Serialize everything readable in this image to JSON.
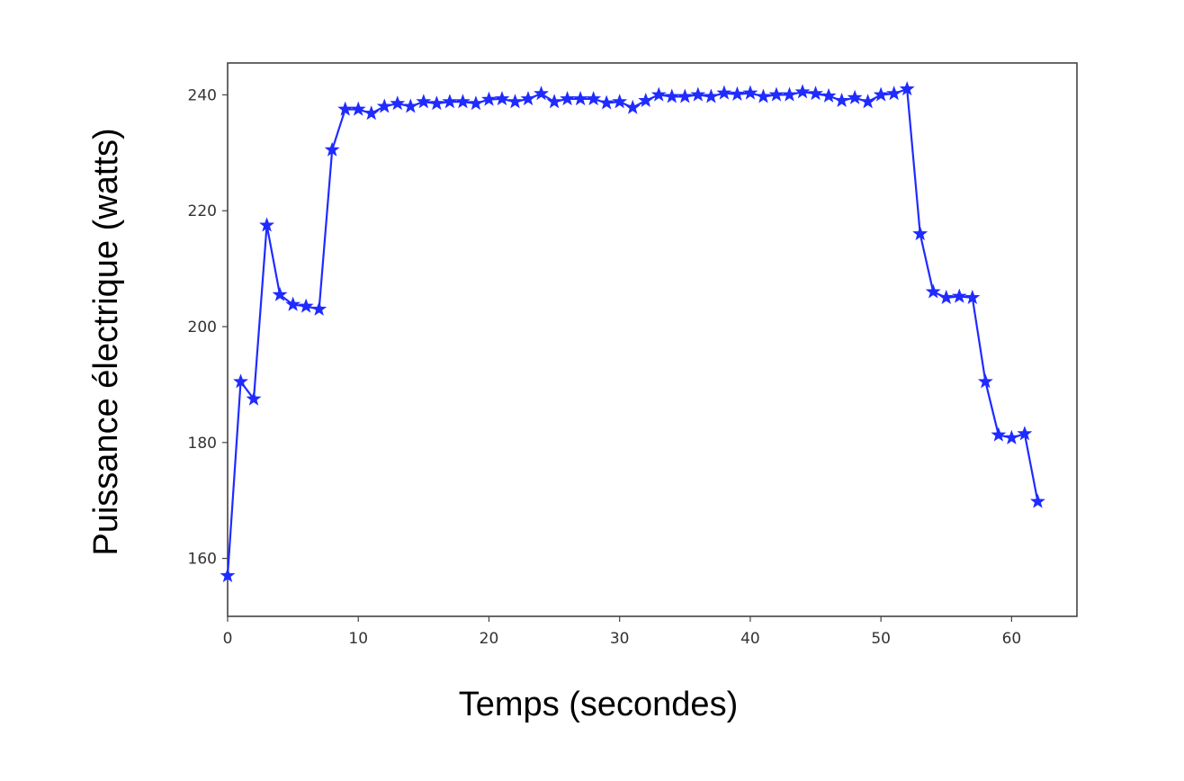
{
  "chart_data": {
    "type": "line",
    "title": "",
    "xlabel": "Temps (secondes)",
    "ylabel": "Puissance électrique (watts)",
    "xlim": [
      0,
      65
    ],
    "ylim": [
      150,
      245.5
    ],
    "xticks": [
      0,
      10,
      20,
      30,
      40,
      50,
      60
    ],
    "yticks": [
      160,
      180,
      200,
      220,
      240
    ],
    "grid": false,
    "marker": "star",
    "color": "#1f2bff",
    "series": [
      {
        "x": [
          0,
          1,
          2,
          3,
          4,
          5,
          6,
          7,
          8,
          9,
          10,
          11,
          12,
          13,
          14,
          15,
          16,
          17,
          18,
          19,
          20,
          21,
          22,
          23,
          24,
          25,
          26,
          27,
          28,
          29,
          30,
          31,
          32,
          33,
          34,
          35,
          36,
          37,
          38,
          39,
          40,
          41,
          42,
          43,
          44,
          45,
          46,
          47,
          48,
          49,
          50,
          51,
          52,
          53,
          54,
          55,
          56,
          57,
          58,
          59,
          60,
          61,
          62
        ],
        "values": [
          157,
          190.5,
          187.5,
          217.5,
          205.5,
          203.8,
          203.5,
          203,
          230.5,
          237.5,
          237.5,
          236.8,
          238,
          238.5,
          238,
          238.8,
          238.5,
          238.8,
          238.8,
          238.5,
          239.2,
          239.3,
          238.8,
          239.3,
          240.2,
          238.8,
          239.3,
          239.3,
          239.3,
          238.6,
          238.8,
          237.8,
          239,
          240,
          239.7,
          239.7,
          240,
          239.7,
          240.3,
          240.1,
          240.3,
          239.7,
          240,
          240,
          240.5,
          240.2,
          239.8,
          239,
          239.5,
          238.8,
          240,
          240.2,
          241,
          216,
          206,
          205,
          205.2,
          205,
          190.5,
          181.3,
          180.8,
          181.5,
          169.8
        ]
      }
    ]
  }
}
